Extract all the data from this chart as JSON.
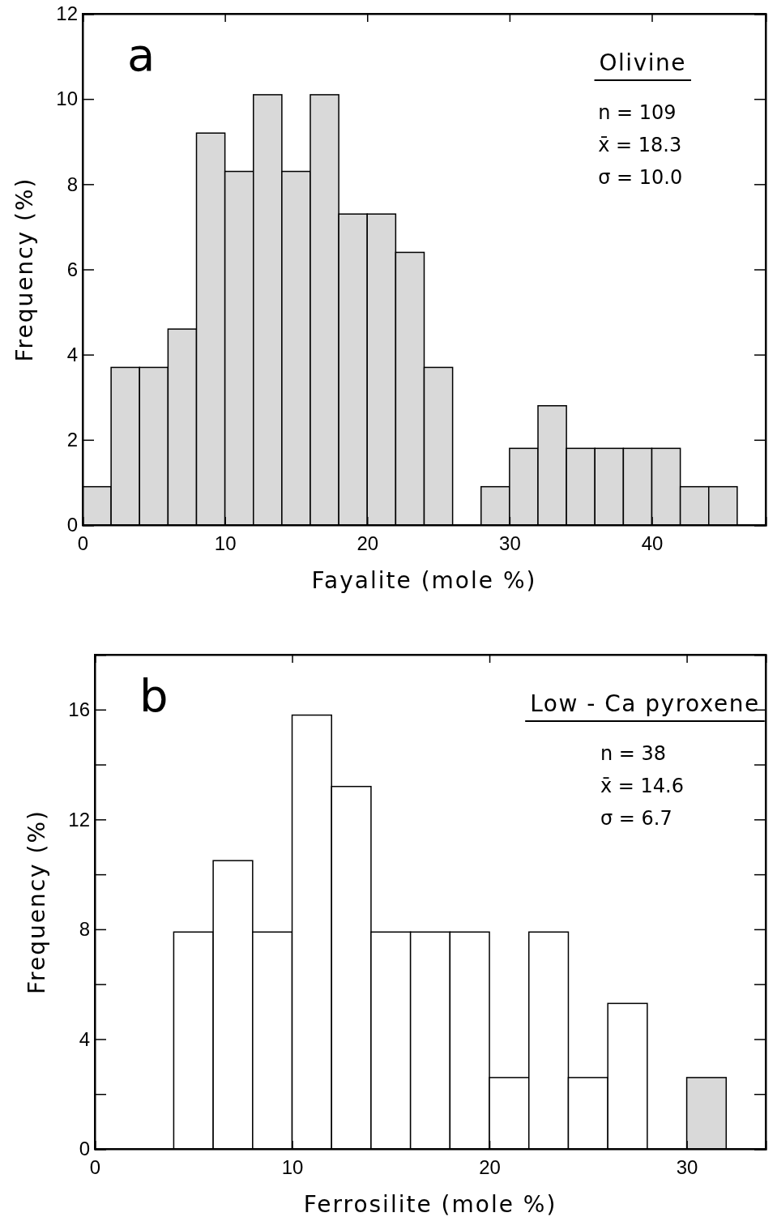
{
  "chart_data": [
    {
      "type": "histogram",
      "title": "a",
      "subtitle": "Olivine",
      "xlabel": "Fayalite (mole %)",
      "ylabel": "Frequency (%)",
      "bins": [
        0,
        2,
        4,
        6,
        8,
        10,
        12,
        14,
        16,
        18,
        20,
        22,
        24,
        26,
        28,
        30,
        32,
        34,
        36,
        38,
        40,
        42,
        44,
        46
      ],
      "values": [
        0.9,
        3.7,
        3.7,
        4.6,
        9.2,
        8.3,
        10.1,
        8.3,
        10.1,
        7.3,
        7.3,
        6.4,
        3.7,
        0,
        0.9,
        1.8,
        2.8,
        1.8,
        1.8,
        1.8,
        1.8,
        0.9,
        0.9
      ],
      "color": "#d9d9d9",
      "xlim": [
        0,
        48
      ],
      "xticks": [
        0,
        10,
        20,
        30,
        40
      ],
      "ylim": [
        0,
        12
      ],
      "yticks": [
        0,
        2,
        4,
        6,
        8,
        10,
        12
      ],
      "annotations": [
        "n = 109",
        "x̄ = 18.3",
        "σ = 10.0"
      ]
    },
    {
      "type": "histogram",
      "title": "b",
      "subtitle": "Low - Ca pyroxene",
      "xlabel": "Ferrosilite (mole %)",
      "ylabel": "Frequency (%)",
      "bins": [
        4,
        6,
        8,
        10,
        12,
        14,
        16,
        18,
        20,
        22,
        24,
        26,
        28,
        30,
        32
      ],
      "values": [
        7.9,
        10.5,
        7.9,
        15.8,
        13.2,
        7.9,
        7.9,
        7.9,
        2.6,
        7.9,
        2.6,
        5.3,
        0,
        2.6
      ],
      "colors": [
        "#ffffff",
        "#ffffff",
        "#ffffff",
        "#ffffff",
        "#ffffff",
        "#ffffff",
        "#ffffff",
        "#ffffff",
        "#ffffff",
        "#ffffff",
        "#ffffff",
        "#ffffff",
        "#ffffff",
        "#d9d9d9"
      ],
      "xlim": [
        0,
        34
      ],
      "xticks": [
        0,
        10,
        20,
        30
      ],
      "ylim": [
        0,
        18
      ],
      "yticks": [
        0,
        {
          "value": 2,
          "label": null
        },
        4,
        {
          "value": 6,
          "label": null
        },
        8,
        {
          "value": 10,
          "label": null
        },
        12,
        {
          "value": 14,
          "label": null
        },
        16
      ],
      "annotations": [
        "n = 38",
        "x̄ = 14.6",
        "σ = 6.7"
      ]
    }
  ]
}
